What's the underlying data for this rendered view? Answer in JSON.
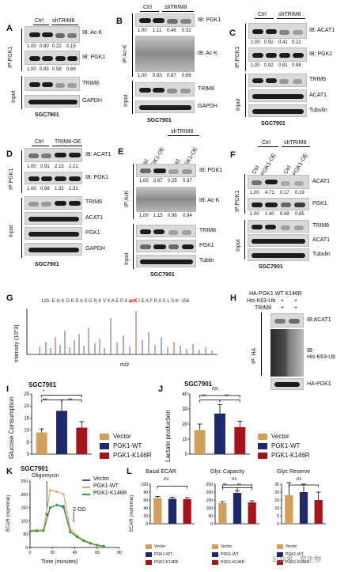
{
  "panels": {
    "A": {
      "label": "A",
      "ip": "IP:PGK1",
      "headers": [
        "Ctrl",
        "shTRIM8"
      ],
      "ib": [
        "IB: Ac-K",
        "IB: PGK1"
      ],
      "quant_top": [
        "1.00",
        "0.80",
        "0.22",
        "0.15"
      ],
      "quant_bottom": [
        "1.00",
        "0.93",
        "0.58",
        "0.69"
      ],
      "input": "Input",
      "input_rows": [
        "TRIM8",
        "GAPDH"
      ],
      "cell": "SGC7901"
    },
    "B": {
      "label": "B",
      "ip": "IP:Ac-K",
      "headers": [
        "Ctrl",
        "shTRIM8"
      ],
      "ib": [
        "IB: PGK1",
        "IB: Ac-K"
      ],
      "quant_top": [
        "1.00",
        "1.11",
        "0.46",
        "0.32"
      ],
      "quant_bottom": [
        "1.00",
        "0.93",
        "0.87",
        "0.89"
      ],
      "input": "Input",
      "input_rows": [
        "TRIM8",
        "GAPDH"
      ],
      "cell": "SGC7901"
    },
    "C": {
      "label": "C",
      "ip": "IP:PGK1",
      "headers": [
        "Ctrl",
        "shTRIM8"
      ],
      "ib": [
        "IB: ACAT1",
        "IB: PGK1"
      ],
      "quant_top": [
        "1.00",
        "0.92",
        "0.41",
        "0.21"
      ],
      "quant_bottom": [
        "1.00",
        "0.92",
        "0.81",
        "0.88"
      ],
      "input": "Input",
      "input_rows": [
        "TRIM8",
        "ACAT1",
        "Tubulin"
      ],
      "cell": "SGC7901"
    },
    "D": {
      "label": "D",
      "ip": "IP:PGK1",
      "headers": [
        "Ctrl",
        "TRIM8-OE"
      ],
      "ib": [
        "IB: ACAT1",
        "IB: PGK1"
      ],
      "quant_top": [
        "1.00",
        "0.91",
        "2.15",
        "2.21"
      ],
      "quant_bottom": [
        "1.00",
        "0.98",
        "1.32",
        "1.31"
      ],
      "input": "Input",
      "input_rows": [
        "TRIM8",
        "ACAT1",
        "PGK1",
        "GAPDH"
      ],
      "cell": "SGC7901"
    },
    "E": {
      "label": "E",
      "ip": "IP:AcK",
      "headers_top": [
        "shTRIM8"
      ],
      "lanes": [
        "Ctrl",
        "PGK1-OE",
        "Ctrl",
        "PGK1-OE"
      ],
      "ib": [
        "IB: PGK1",
        "IB: Ac-K"
      ],
      "quant_top": [
        "1.00",
        "2.67",
        "0.25",
        "0.37"
      ],
      "quant_bottom": [
        "1.00",
        "1.15",
        "0.96",
        "0.94"
      ],
      "input": "Input",
      "input_rows": [
        "TRIM8",
        "PGK1",
        "Tublin"
      ],
      "cell": "SGC7901"
    },
    "F": {
      "label": "F",
      "ip": "IP:PGK1",
      "headers_top": [
        "Ctrl",
        "shTRIM8"
      ],
      "lanes": [
        "Ctrl",
        "PGK1-OE",
        "Ctrl",
        "PGK1-OE"
      ],
      "rows": [
        "ACAT1",
        "PGK1"
      ],
      "quant_top": [
        "1.00",
        "4.71",
        "0.17",
        "0.19"
      ],
      "quant_bottom": [
        "1.00",
        "1.40",
        "0.49",
        "0.85"
      ],
      "input": "Input",
      "input_rows": [
        "TRIM8",
        "ACAT1",
        "Tubulin"
      ],
      "cell": "SGC7901"
    },
    "G": {
      "label": "G",
      "sequence": "129- E G K G K D A S G N K V K A E P A ",
      "sequence_mod": "acK",
      "sequence_tail": " I E A F R A S L S K -156",
      "ylabel": "Intensity (10^3)",
      "xlabel": "m/z"
    },
    "H": {
      "label": "H",
      "header_row1": "HA-PGK1",
      "header_wt": "WT",
      "header_mut": "K146R",
      "row2": "His-K63-Ub",
      "row3": "TRIM8",
      "signs": [
        "+",
        "+",
        "+",
        "+",
        "-",
        "+"
      ],
      "ip": "IP: HA",
      "ib1": "IB:ACAT1",
      "ib2": "IB:",
      "ib2b": "His-K63-Ub",
      "bottom": "HA-PGK1"
    },
    "I": {
      "label": "I",
      "cell": "SGC7901",
      "ylabel": "Glucose Consumption",
      "sig": [
        "*",
        "**",
        "**"
      ],
      "legend": [
        "Vector",
        "PGK1-WT",
        "PGK1-K146R"
      ]
    },
    "J": {
      "label": "J",
      "cell": "SGC7901",
      "ylabel": "Lactate production",
      "sig": [
        "ns",
        "**",
        "**"
      ],
      "legend": [
        "Vector",
        "PGK1-WT",
        "PGK1-K146R"
      ]
    },
    "K": {
      "label": "K",
      "cell": "SGC7901",
      "anno1": "Oligomycin",
      "anno2": "2-DG",
      "ylabel": "ECAR (mpH/min)",
      "xlabel": "Time (minutes)",
      "legend": [
        "Vector",
        "PGK1-WT",
        "PGK1-K146R"
      ]
    },
    "L": {
      "label": "L",
      "titles": [
        "Basal ECAR",
        "Glyc Capacity",
        "Glyc Reserve"
      ],
      "ylabel": "ECAR (mpH/min)",
      "sig": [
        "ns",
        "ns",
        "ns",
        "**",
        "**"
      ],
      "legend": [
        "Vector",
        "PGK1-WT",
        "PGK1-K146R"
      ]
    }
  },
  "watermark": "公众号 · 奕生物",
  "colors": {
    "vector": "#d1a15b",
    "wt": "#1e2a6b",
    "k146r": "#a8141c",
    "wt_line": "#e0a86a",
    "vec_line": "#2a62b3",
    "k_line": "#2e9c3a"
  },
  "chart_data": [
    {
      "type": "bar",
      "title": "SGC7901",
      "categories": [
        "Vector",
        "PGK1-WT",
        "PGK1-K146R"
      ],
      "values": [
        9,
        18,
        11
      ],
      "errors": [
        1.5,
        4.5,
        2.5
      ],
      "ylabel": "Glucose Consumption",
      "ylim": [
        0,
        25
      ],
      "yticks": [
        0,
        5,
        10,
        15,
        20,
        25
      ]
    },
    {
      "type": "bar",
      "title": "SGC7901",
      "categories": [
        "Vector",
        "PGK1-WT",
        "PGK1-K146R"
      ],
      "values": [
        16,
        27,
        18
      ],
      "errors": [
        4,
        6,
        4
      ],
      "ylabel": "Lactate production",
      "ylim": [
        0,
        40
      ],
      "yticks": [
        0,
        10,
        20,
        30,
        40
      ]
    },
    {
      "type": "line",
      "title": "SGC7901",
      "xlabel": "Time (minutes)",
      "ylabel": "ECAR (mpH/min)",
      "xlim": [
        0,
        80
      ],
      "ylim": [
        0,
        250
      ],
      "xticks": [
        0,
        20,
        40,
        60,
        80
      ],
      "yticks": [
        0,
        50,
        100,
        150,
        200,
        250
      ],
      "x": [
        0,
        6,
        12,
        18,
        24,
        30,
        36,
        42,
        48,
        54,
        60,
        66
      ],
      "series": [
        {
          "name": "Vector",
          "values": [
            62,
            62,
            63,
            150,
            160,
            155,
            60,
            40,
            25,
            15,
            8,
            5
          ]
        },
        {
          "name": "PGK1-WT",
          "values": [
            65,
            66,
            67,
            215,
            210,
            200,
            70,
            45,
            28,
            18,
            10,
            6
          ]
        },
        {
          "name": "PGK1-K146R",
          "values": [
            60,
            62,
            63,
            150,
            160,
            150,
            58,
            40,
            25,
            15,
            8,
            5
          ]
        }
      ]
    },
    {
      "type": "bar",
      "title": "Basal ECAR",
      "categories": [
        "Vector",
        "PGK1-WT",
        "PGK1-K146R"
      ],
      "values": [
        65,
        63,
        62
      ],
      "errors": [
        4,
        4,
        4
      ],
      "ylabel": "ECAR (mpH/min)",
      "ylim": [
        0,
        100
      ],
      "yticks": [
        0,
        20,
        40,
        60,
        80,
        100
      ]
    },
    {
      "type": "bar",
      "title": "Glyc Capacity",
      "categories": [
        "Vector",
        "PGK1-WT",
        "PGK1-K146R"
      ],
      "values": [
        130,
        195,
        135
      ],
      "errors": [
        10,
        12,
        10
      ],
      "ylabel": "",
      "ylim": [
        0,
        250
      ],
      "yticks": [
        0,
        50,
        100,
        150,
        200,
        250
      ]
    },
    {
      "type": "bar",
      "title": "Glyc Reserve",
      "categories": [
        "Vector",
        "PGK1-WT",
        "PGK1-K146R"
      ],
      "values": [
        18,
        20,
        15
      ],
      "errors": [
        8,
        5,
        5
      ],
      "ylabel": "",
      "ylim": [
        0,
        25
      ],
      "yticks": [
        0,
        5,
        10,
        15,
        20,
        25
      ]
    }
  ]
}
